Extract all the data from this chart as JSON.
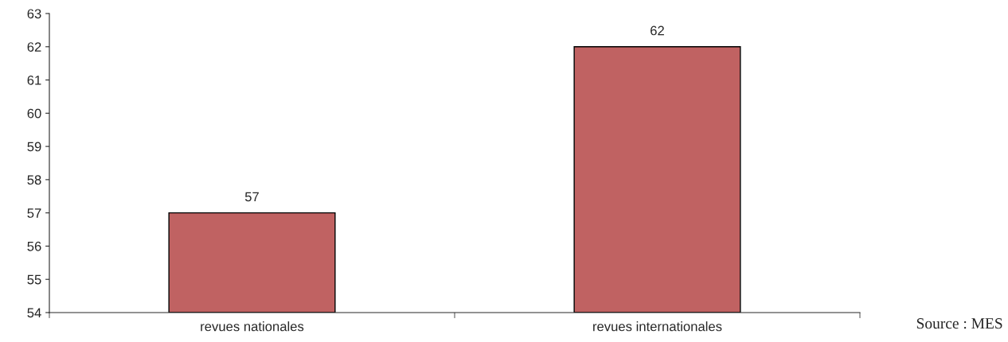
{
  "chart_data": {
    "type": "bar",
    "categories": [
      "revues nationales",
      "revues internationales"
    ],
    "values": [
      57,
      62
    ],
    "color": "#c06262",
    "ylim": [
      54,
      63
    ],
    "yticks": [
      54,
      55,
      56,
      57,
      58,
      59,
      60,
      61,
      62,
      63
    ],
    "grid": false,
    "data_labels": true,
    "annotations": [
      "Source : MES"
    ]
  }
}
